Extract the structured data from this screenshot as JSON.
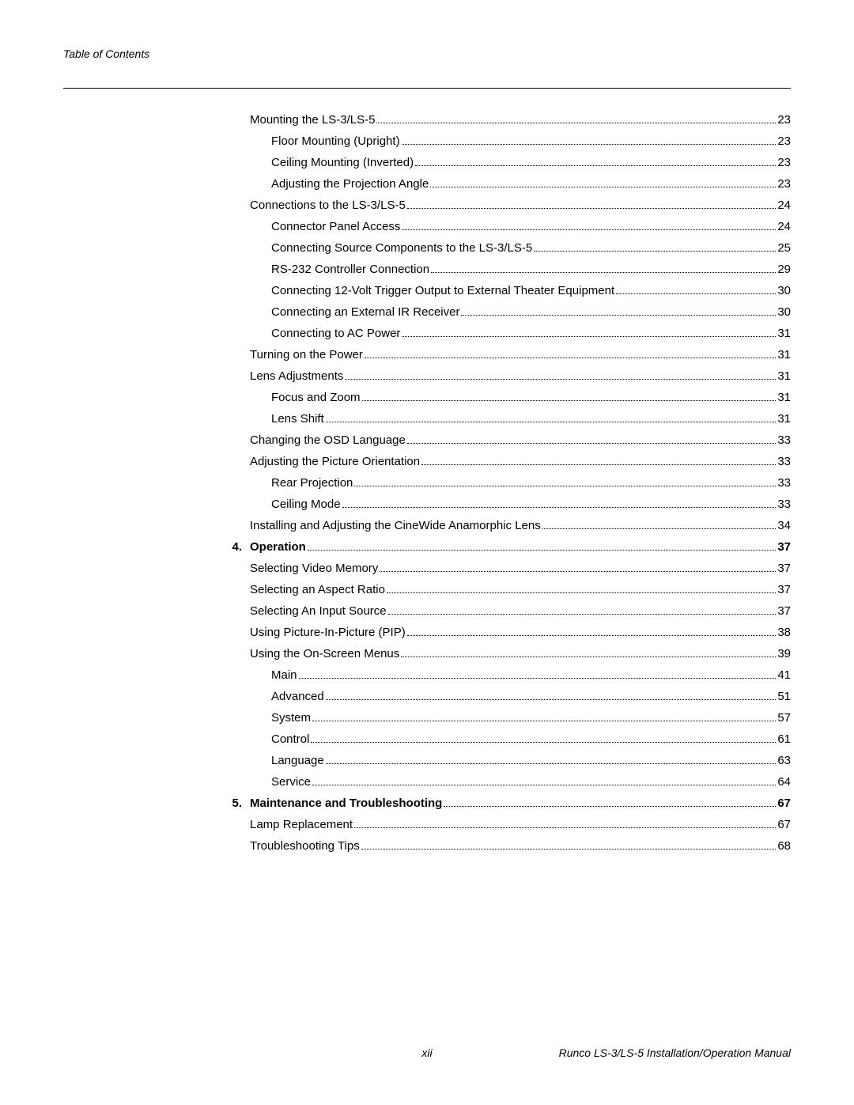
{
  "header": "Table of Contents",
  "footer": {
    "page_num": "xii",
    "manual": "Runco LS-3/LS-5 Installation/Operation Manual"
  },
  "entries": [
    {
      "num": "",
      "title": "Mounting the LS-3/LS-5",
      "page": "23",
      "indent": 0,
      "bold": false
    },
    {
      "num": "",
      "title": "Floor Mounting (Upright)",
      "page": "23",
      "indent": 1,
      "bold": false
    },
    {
      "num": "",
      "title": "Ceiling Mounting (Inverted)",
      "page": "23",
      "indent": 1,
      "bold": false
    },
    {
      "num": "",
      "title": "Adjusting the Projection Angle",
      "page": "23",
      "indent": 1,
      "bold": false
    },
    {
      "num": "",
      "title": "Connections to the LS-3/LS-5",
      "page": "24",
      "indent": 0,
      "bold": false
    },
    {
      "num": "",
      "title": "Connector Panel Access",
      "page": "24",
      "indent": 1,
      "bold": false
    },
    {
      "num": "",
      "title": "Connecting Source Components to the LS-3/LS-5",
      "page": "25",
      "indent": 1,
      "bold": false
    },
    {
      "num": "",
      "title": "RS-232 Controller Connection",
      "page": "29",
      "indent": 1,
      "bold": false
    },
    {
      "num": "",
      "title": "Connecting 12-Volt Trigger Output to External Theater Equipment",
      "page": "30",
      "indent": 1,
      "bold": false
    },
    {
      "num": "",
      "title": "Connecting an External IR Receiver",
      "page": "30",
      "indent": 1,
      "bold": false
    },
    {
      "num": "",
      "title": "Connecting to AC Power",
      "page": "31",
      "indent": 1,
      "bold": false
    },
    {
      "num": "",
      "title": "Turning on the Power",
      "page": "31",
      "indent": 0,
      "bold": false
    },
    {
      "num": "",
      "title": "Lens Adjustments",
      "page": "31",
      "indent": 0,
      "bold": false
    },
    {
      "num": "",
      "title": "Focus and Zoom",
      "page": "31",
      "indent": 1,
      "bold": false
    },
    {
      "num": "",
      "title": "Lens Shift",
      "page": "31",
      "indent": 1,
      "bold": false
    },
    {
      "num": "",
      "title": "Changing the OSD Language",
      "page": "33",
      "indent": 0,
      "bold": false
    },
    {
      "num": "",
      "title": "Adjusting the Picture Orientation",
      "page": "33",
      "indent": 0,
      "bold": false
    },
    {
      "num": "",
      "title": "Rear Projection",
      "page": "33",
      "indent": 1,
      "bold": false
    },
    {
      "num": "",
      "title": "Ceiling Mode",
      "page": "33",
      "indent": 1,
      "bold": false
    },
    {
      "num": "",
      "title": "Installing and Adjusting the CineWide Anamorphic Lens",
      "page": "34",
      "indent": 0,
      "bold": false
    },
    {
      "num": "4.",
      "title": "Operation",
      "page": "37",
      "indent": 0,
      "bold": true
    },
    {
      "num": "",
      "title": "Selecting Video Memory",
      "page": "37",
      "indent": 0,
      "bold": false
    },
    {
      "num": "",
      "title": "Selecting an Aspect Ratio",
      "page": "37",
      "indent": 0,
      "bold": false
    },
    {
      "num": "",
      "title": "Selecting An Input Source",
      "page": "37",
      "indent": 0,
      "bold": false
    },
    {
      "num": "",
      "title": "Using Picture-In-Picture (PIP)",
      "page": "38",
      "indent": 0,
      "bold": false
    },
    {
      "num": "",
      "title": "Using the On-Screen Menus",
      "page": "39",
      "indent": 0,
      "bold": false
    },
    {
      "num": "",
      "title": "Main",
      "page": "41",
      "indent": 1,
      "bold": false
    },
    {
      "num": "",
      "title": "Advanced",
      "page": "51",
      "indent": 1,
      "bold": false
    },
    {
      "num": "",
      "title": "System",
      "page": "57",
      "indent": 1,
      "bold": false
    },
    {
      "num": "",
      "title": "Control",
      "page": "61",
      "indent": 1,
      "bold": false
    },
    {
      "num": "",
      "title": "Language",
      "page": "63",
      "indent": 1,
      "bold": false
    },
    {
      "num": "",
      "title": "Service",
      "page": "64",
      "indent": 1,
      "bold": false
    },
    {
      "num": "5.",
      "title": "Maintenance and Troubleshooting",
      "page": "67",
      "indent": 0,
      "bold": true
    },
    {
      "num": "",
      "title": "Lamp Replacement",
      "page": "67",
      "indent": 0,
      "bold": false
    },
    {
      "num": "",
      "title": "Troubleshooting Tips",
      "page": "68",
      "indent": 0,
      "bold": false
    }
  ]
}
